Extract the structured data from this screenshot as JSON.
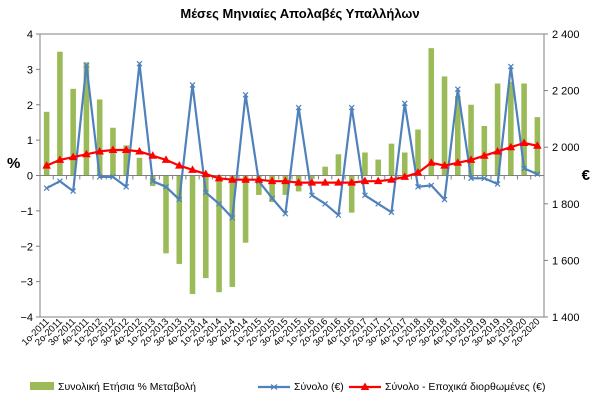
{
  "chart_data": {
    "type": "bar+line",
    "title": "Μέσες Μηνιαίες Απολαβές Υπαλλήλων",
    "categories": [
      "1ο-2011",
      "2ο-2011",
      "3ο-2011",
      "4ο-2011",
      "1ο-2012",
      "2ο-2012",
      "3ο-2012",
      "4ο-2012",
      "1ο-2013",
      "2ο-2013",
      "3ο-2013",
      "4ο-2013",
      "1ο-2014",
      "2ο-2014",
      "3ο-2014",
      "4ο-2014",
      "1ο-2015",
      "2ο-2015",
      "3ο-2015",
      "4ο-2015",
      "1ο-2016",
      "2ο-2016",
      "3ο-2016",
      "4ο-2016",
      "1ο-2017",
      "2ο-2017",
      "3ο-2017",
      "4ο-2017",
      "1ο-2018",
      "2ο-2018",
      "3ο-2018",
      "4ο-2018",
      "1ο-2019",
      "2ο-2019",
      "3ο-2019",
      "4ο-2019",
      "1ο-2020",
      "2ο-2020"
    ],
    "left_axis": {
      "label": "%",
      "min": -4,
      "max": 4,
      "step": 1,
      "tick_labels": [
        "−4",
        "−3",
        "−2",
        "−1",
        "0",
        "1",
        "2",
        "3",
        "4"
      ]
    },
    "right_axis": {
      "label": "€",
      "min": 1400,
      "max": 2400,
      "step": 200,
      "tick_labels": [
        "1 400",
        "1 600",
        "1 800",
        "2 000",
        "2 200",
        "2 400"
      ]
    },
    "series": [
      {
        "name": "Συνολική Ετήσια % Μεταβολή",
        "type": "bar",
        "axis": "left",
        "color": "#9BBB59",
        "values": [
          1.8,
          3.5,
          2.45,
          3.2,
          2.15,
          1.35,
          0.85,
          0.5,
          -0.3,
          -2.2,
          -2.5,
          -3.35,
          -2.9,
          -3.3,
          -3.15,
          -1.9,
          -0.55,
          -0.75,
          -0.55,
          -0.45,
          -0.1,
          0.25,
          0.6,
          -1.05,
          0.65,
          0.45,
          0.9,
          0.65,
          1.3,
          3.6,
          2.8,
          2.25,
          2.0,
          1.4,
          2.6,
          2.65,
          2.6,
          1.65
        ]
      },
      {
        "name": "Σύνολο (€)",
        "type": "line",
        "axis": "right",
        "color": "#4F81BD",
        "values": [
          1855,
          1880,
          1845,
          2290,
          1895,
          1895,
          1860,
          2295,
          1880,
          1860,
          1815,
          2220,
          1840,
          1800,
          1750,
          2185,
          1880,
          1820,
          1765,
          2140,
          1830,
          1800,
          1760,
          2140,
          1830,
          1800,
          1770,
          2155,
          1860,
          1865,
          1815,
          2205,
          1890,
          1890,
          1870,
          2285,
          1925,
          1905
        ]
      },
      {
        "name": "Σύνολο - Εποχικά διορθωμένες (€)",
        "type": "line",
        "axis": "right",
        "color": "#FF0000",
        "values": [
          1935,
          1955,
          1965,
          1975,
          1985,
          1990,
          1990,
          1985,
          1970,
          1955,
          1935,
          1920,
          1905,
          1890,
          1885,
          1885,
          1885,
          1880,
          1880,
          1875,
          1875,
          1875,
          1875,
          1875,
          1880,
          1880,
          1885,
          1895,
          1910,
          1945,
          1935,
          1945,
          1955,
          1970,
          1985,
          2000,
          2015,
          2005
        ]
      }
    ],
    "grid": true,
    "legend": "bottom"
  }
}
